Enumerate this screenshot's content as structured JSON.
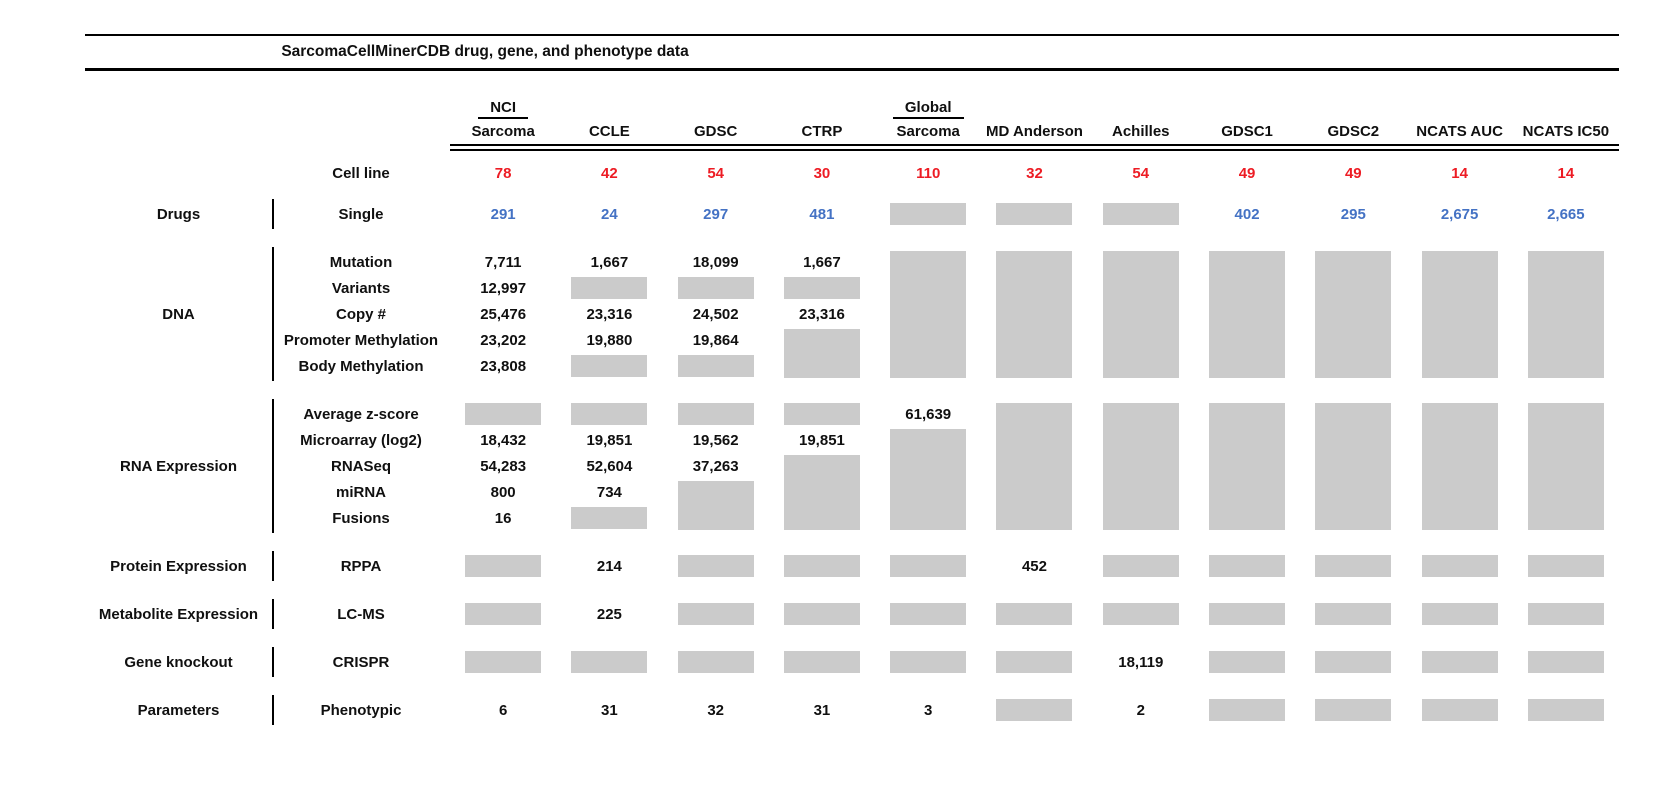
{
  "title": "SarcomaCellMinerCDB drug, gene, and phenotype data",
  "colors": {
    "cell_line_count": "#ed1c24",
    "drug_count": "#4472c4",
    "missing_block": "#cbcbcb",
    "rule": "#000000"
  },
  "chart_data": {
    "type": "table",
    "title": "SarcomaCellMinerCDB drug, gene, and phenotype data",
    "columns": [
      {
        "group": "NCI",
        "label": "Sarcoma"
      },
      {
        "group": "",
        "label": "CCLE"
      },
      {
        "group": "",
        "label": "GDSC"
      },
      {
        "group": "",
        "label": "CTRP"
      },
      {
        "group": "Global",
        "label": "Sarcoma"
      },
      {
        "group": "",
        "label": "MD Anderson"
      },
      {
        "group": "",
        "label": "Achilles"
      },
      {
        "group": "",
        "label": "GDSC1"
      },
      {
        "group": "",
        "label": "GDSC2"
      },
      {
        "group": "",
        "label": "NCATS AUC"
      },
      {
        "group": "",
        "label": "NCATS IC50"
      }
    ],
    "cell_line_row": {
      "label": "Cell line",
      "values": [
        "78",
        "42",
        "54",
        "30",
        "110",
        "32",
        "54",
        "49",
        "49",
        "14",
        "14"
      ]
    },
    "sections": [
      {
        "category": "Drugs",
        "rows": [
          {
            "label": "Single",
            "color": "blue",
            "cells": [
              "291",
              "24",
              "297",
              "481",
              "block",
              "block",
              "block",
              "402",
              "295",
              "2,675",
              "2,665"
            ]
          }
        ],
        "spans": []
      },
      {
        "category": "DNA",
        "rows": [
          {
            "label": "Mutation",
            "cells": [
              "7,711",
              "1,667",
              "18,099",
              "1,667",
              "",
              "",
              "",
              "",
              "",
              "",
              ""
            ]
          },
          {
            "label": "Variants",
            "cells": [
              "12,997",
              "block",
              "block",
              "block",
              "",
              "",
              "",
              "",
              "",
              "",
              ""
            ]
          },
          {
            "label": "Copy #",
            "cells": [
              "25,476",
              "23,316",
              "24,502",
              "23,316",
              "",
              "",
              "",
              "",
              "",
              "",
              ""
            ]
          },
          {
            "label": "Promoter Methylation",
            "cells": [
              "23,202",
              "19,880",
              "19,864",
              "",
              "",
              "",
              "",
              "",
              "",
              "",
              ""
            ]
          },
          {
            "label": "Body Methylation",
            "cells": [
              "23,808",
              "block",
              "block",
              "",
              "",
              "",
              "",
              "",
              "",
              "",
              ""
            ]
          }
        ],
        "spans": [
          {
            "col": 3,
            "start": 3,
            "end": 4
          },
          {
            "col": 4,
            "start": 0,
            "end": 4
          },
          {
            "col": 5,
            "start": 0,
            "end": 4
          },
          {
            "col": 6,
            "start": 0,
            "end": 4
          },
          {
            "col": 7,
            "start": 0,
            "end": 4
          },
          {
            "col": 8,
            "start": 0,
            "end": 4
          },
          {
            "col": 9,
            "start": 0,
            "end": 4
          },
          {
            "col": 10,
            "start": 0,
            "end": 4
          }
        ]
      },
      {
        "category": "RNA Expression",
        "rows": [
          {
            "label": "Average z-score",
            "cells": [
              "block",
              "block",
              "block",
              "block",
              "61,639",
              "",
              "",
              "",
              "",
              "",
              ""
            ]
          },
          {
            "label": "Microarray (log2)",
            "cells": [
              "18,432",
              "19,851",
              "19,562",
              "19,851",
              "",
              "",
              "",
              "",
              "",
              "",
              ""
            ]
          },
          {
            "label": "RNASeq",
            "cells": [
              "54,283",
              "52,604",
              "37,263",
              "",
              "",
              "",
              "",
              "",
              "",
              "",
              ""
            ]
          },
          {
            "label": "miRNA",
            "cells": [
              "800",
              "734",
              "",
              "",
              "",
              "",
              "",
              "",
              "",
              "",
              ""
            ]
          },
          {
            "label": "Fusions",
            "cells": [
              "16",
              "block",
              "",
              "",
              "",
              "",
              "",
              "",
              "",
              "",
              ""
            ]
          }
        ],
        "spans": [
          {
            "col": 2,
            "start": 3,
            "end": 4
          },
          {
            "col": 3,
            "start": 2,
            "end": 4
          },
          {
            "col": 4,
            "start": 1,
            "end": 4
          },
          {
            "col": 5,
            "start": 0,
            "end": 4
          },
          {
            "col": 6,
            "start": 0,
            "end": 4
          },
          {
            "col": 7,
            "start": 0,
            "end": 4
          },
          {
            "col": 8,
            "start": 0,
            "end": 4
          },
          {
            "col": 9,
            "start": 0,
            "end": 4
          },
          {
            "col": 10,
            "start": 0,
            "end": 4
          }
        ]
      },
      {
        "category": "Protein Expression",
        "rows": [
          {
            "label": "RPPA",
            "cells": [
              "block",
              "214",
              "block",
              "block",
              "block",
              "452",
              "block",
              "block",
              "block",
              "block",
              "block"
            ]
          }
        ],
        "spans": []
      },
      {
        "category": "Metabolite Expression",
        "rows": [
          {
            "label": "LC-MS",
            "cells": [
              "block",
              "225",
              "block",
              "block",
              "block",
              "block",
              "block",
              "block",
              "block",
              "block",
              "block"
            ]
          }
        ],
        "spans": []
      },
      {
        "category": "Gene knockout",
        "rows": [
          {
            "label": "CRISPR",
            "cells": [
              "block",
              "block",
              "block",
              "block",
              "block",
              "block",
              "18,119",
              "block",
              "block",
              "block",
              "block"
            ]
          }
        ],
        "spans": []
      },
      {
        "category": "Parameters",
        "rows": [
          {
            "label": "Phenotypic",
            "cells": [
              "6",
              "31",
              "32",
              "31",
              "3",
              "block",
              "2",
              "block",
              "block",
              "block",
              "block"
            ]
          }
        ],
        "spans": []
      }
    ]
  }
}
